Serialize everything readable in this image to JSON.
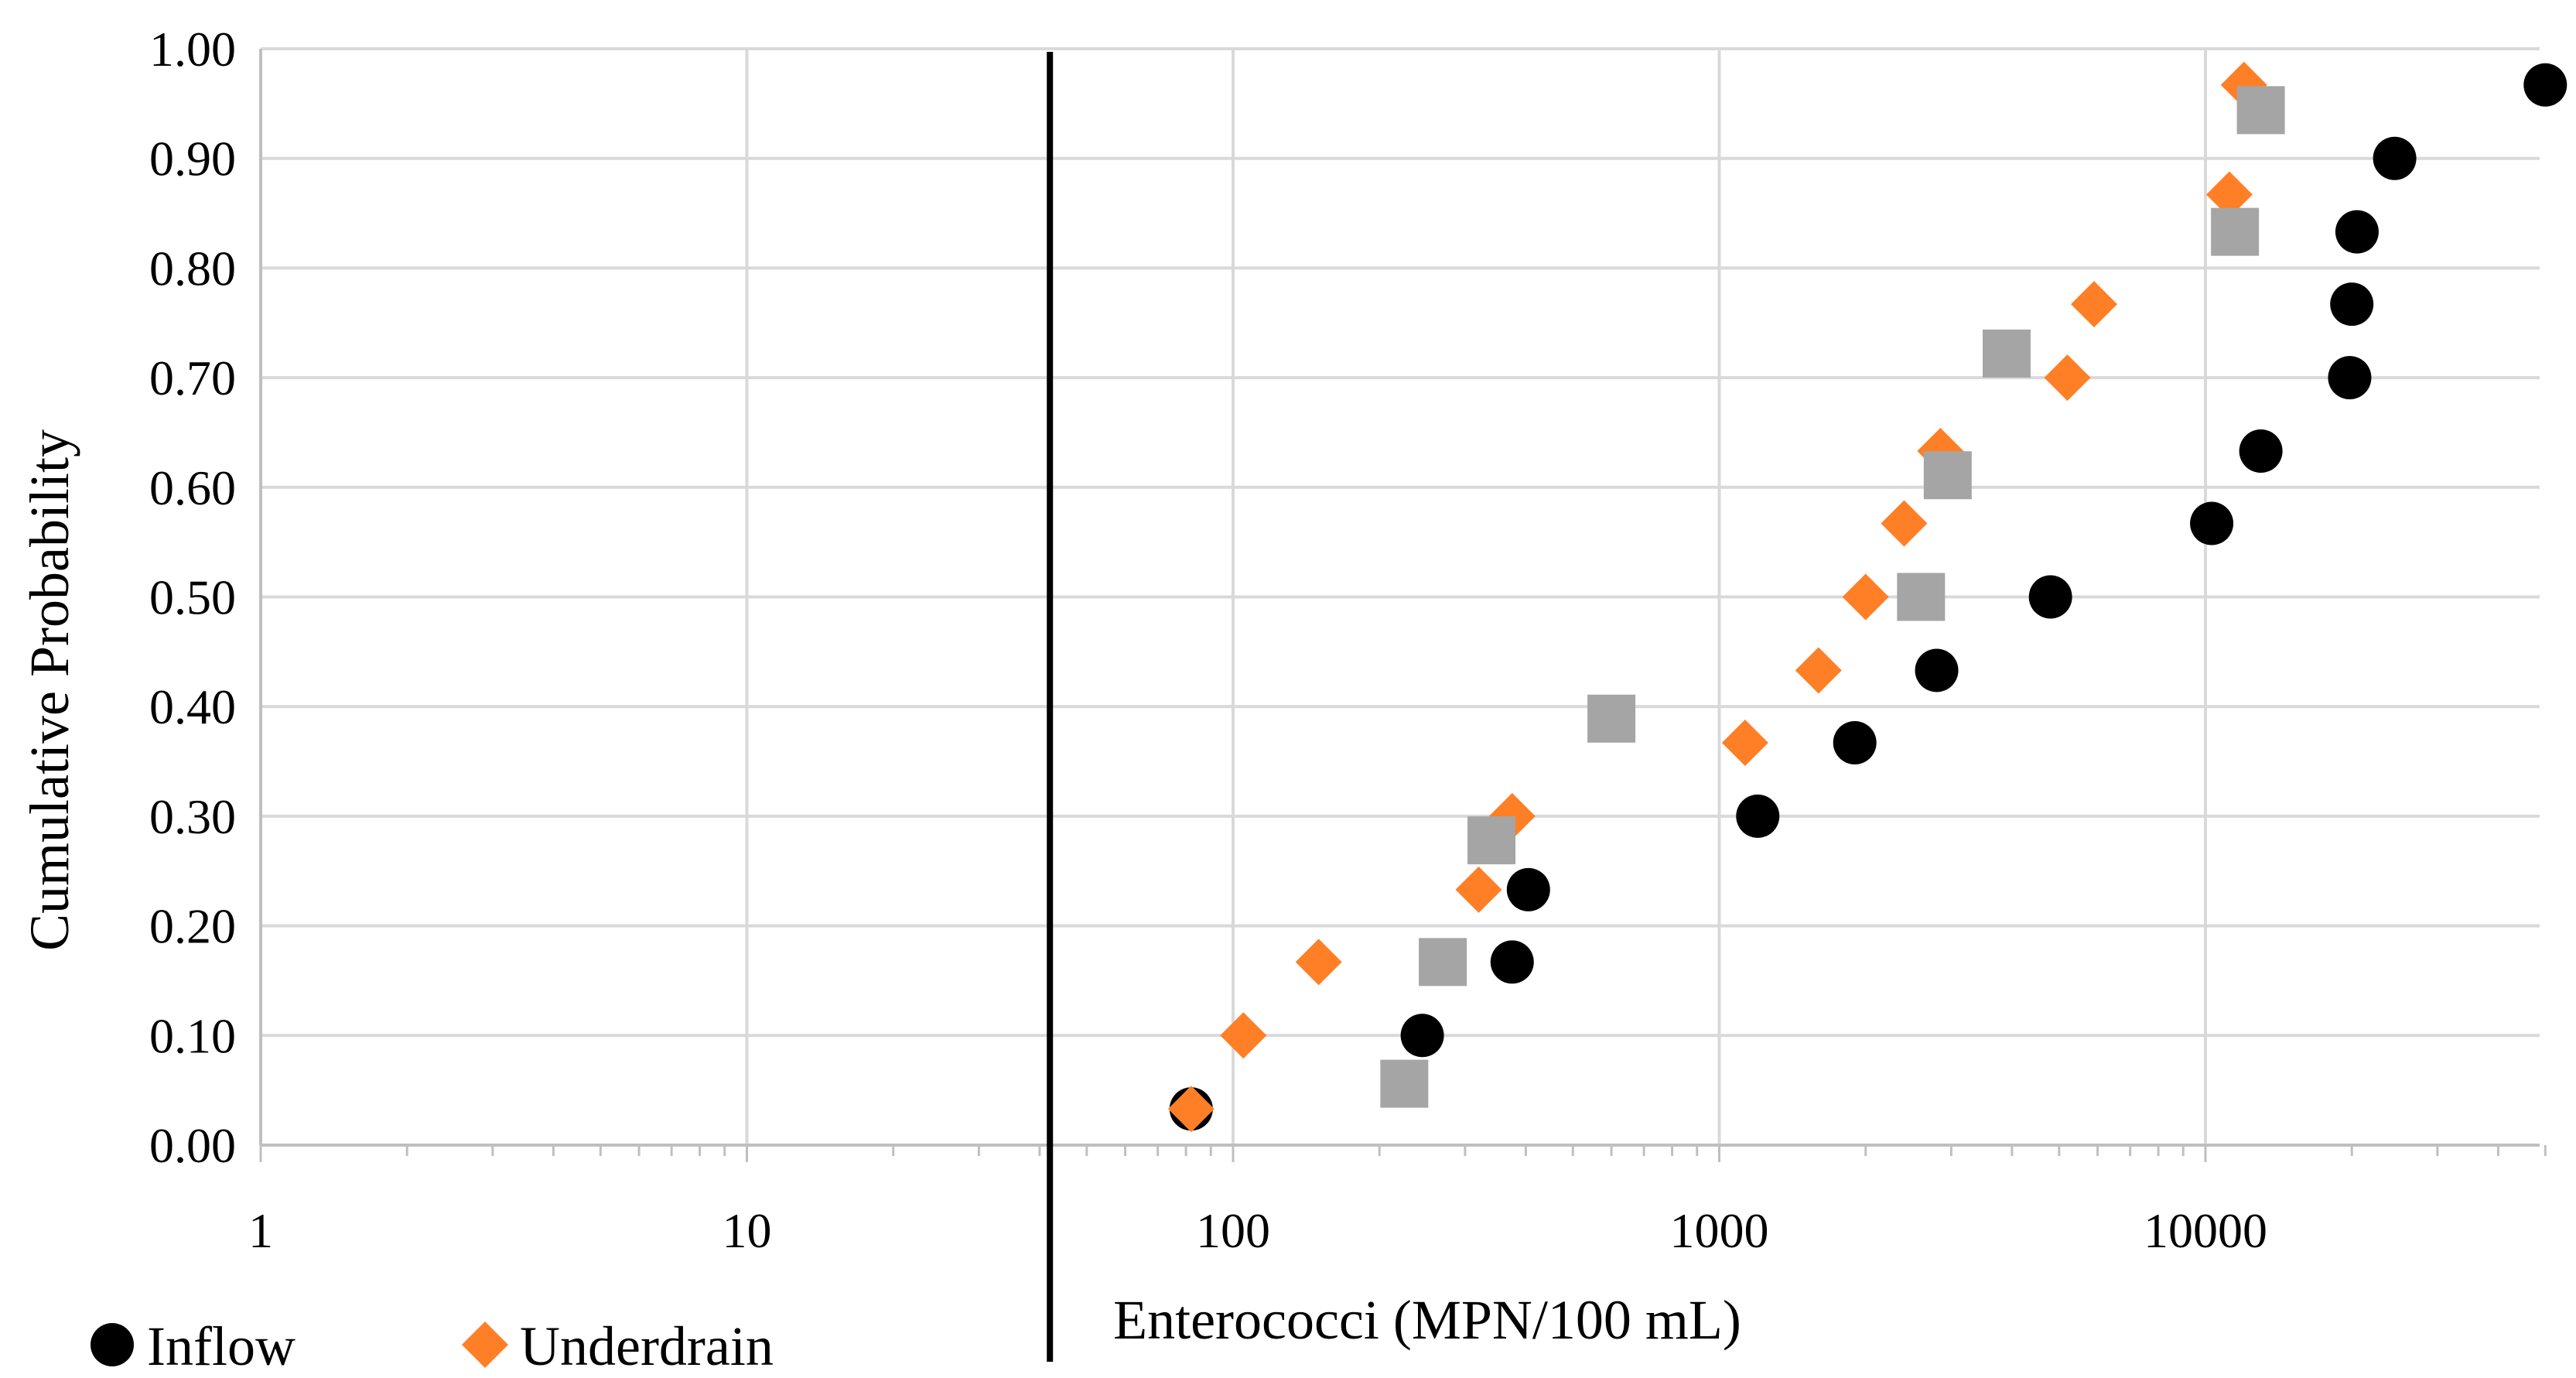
{
  "chart_data": {
    "type": "scatter",
    "title": "",
    "xlabel": "Enterococci (MPN/100 mL)",
    "ylabel": "Cumulative Probability",
    "xscale": "log",
    "xlim": [
      1,
      50000
    ],
    "ylim": [
      0,
      1
    ],
    "x_tick_labels": [
      "1",
      "10",
      "100",
      "1000",
      "10000"
    ],
    "x_tick_values": [
      1,
      10,
      100,
      1000,
      10000
    ],
    "y_tick_labels": [
      "0.00",
      "0.10",
      "0.20",
      "0.30",
      "0.40",
      "0.50",
      "0.60",
      "0.70",
      "0.80",
      "0.90",
      "1.00"
    ],
    "y_tick_values": [
      0,
      0.1,
      0.2,
      0.3,
      0.4,
      0.5,
      0.6,
      0.7,
      0.8,
      0.9,
      1.0
    ],
    "grid": true,
    "reference_line_x": 42,
    "legend_position": "bottom-left",
    "series": [
      {
        "name": "Inflow",
        "marker": "circle",
        "color": "#000000",
        "points": [
          [
            82,
            0.033
          ],
          [
            245,
            0.1
          ],
          [
            375,
            0.167
          ],
          [
            405,
            0.233
          ],
          [
            1200,
            0.3
          ],
          [
            1900,
            0.367
          ],
          [
            2800,
            0.433
          ],
          [
            4800,
            0.5
          ],
          [
            10300,
            0.567
          ],
          [
            13000,
            0.633
          ],
          [
            19800,
            0.7
          ],
          [
            20000,
            0.767
          ],
          [
            20500,
            0.833
          ],
          [
            24500,
            0.9
          ],
          [
            50000,
            0.967
          ]
        ]
      },
      {
        "name": "Underdrain",
        "marker": "diamond",
        "color": "#FF7F27",
        "points": [
          [
            82,
            0.033
          ],
          [
            105,
            0.1
          ],
          [
            150,
            0.167
          ],
          [
            320,
            0.233
          ],
          [
            375,
            0.3
          ],
          [
            1130,
            0.367
          ],
          [
            1600,
            0.433
          ],
          [
            2000,
            0.5
          ],
          [
            2400,
            0.567
          ],
          [
            2850,
            0.633
          ],
          [
            5200,
            0.7
          ],
          [
            5900,
            0.767
          ],
          [
            11200,
            0.867
          ],
          [
            12000,
            0.967
          ]
        ]
      },
      {
        "name": "",
        "marker": "square",
        "color": "#A5A5A5",
        "points": [
          [
            225,
            0.056
          ],
          [
            270,
            0.167
          ],
          [
            340,
            0.278
          ],
          [
            600,
            0.389
          ],
          [
            2600,
            0.5
          ],
          [
            2950,
            0.611
          ],
          [
            3900,
            0.722
          ],
          [
            11500,
            0.833
          ],
          [
            13000,
            0.944
          ]
        ]
      }
    ],
    "legend": [
      {
        "label": "Inflow",
        "marker": "circle",
        "color": "#000000"
      },
      {
        "label": "Underdrain",
        "marker": "diamond",
        "color": "#FF7F27"
      }
    ]
  }
}
